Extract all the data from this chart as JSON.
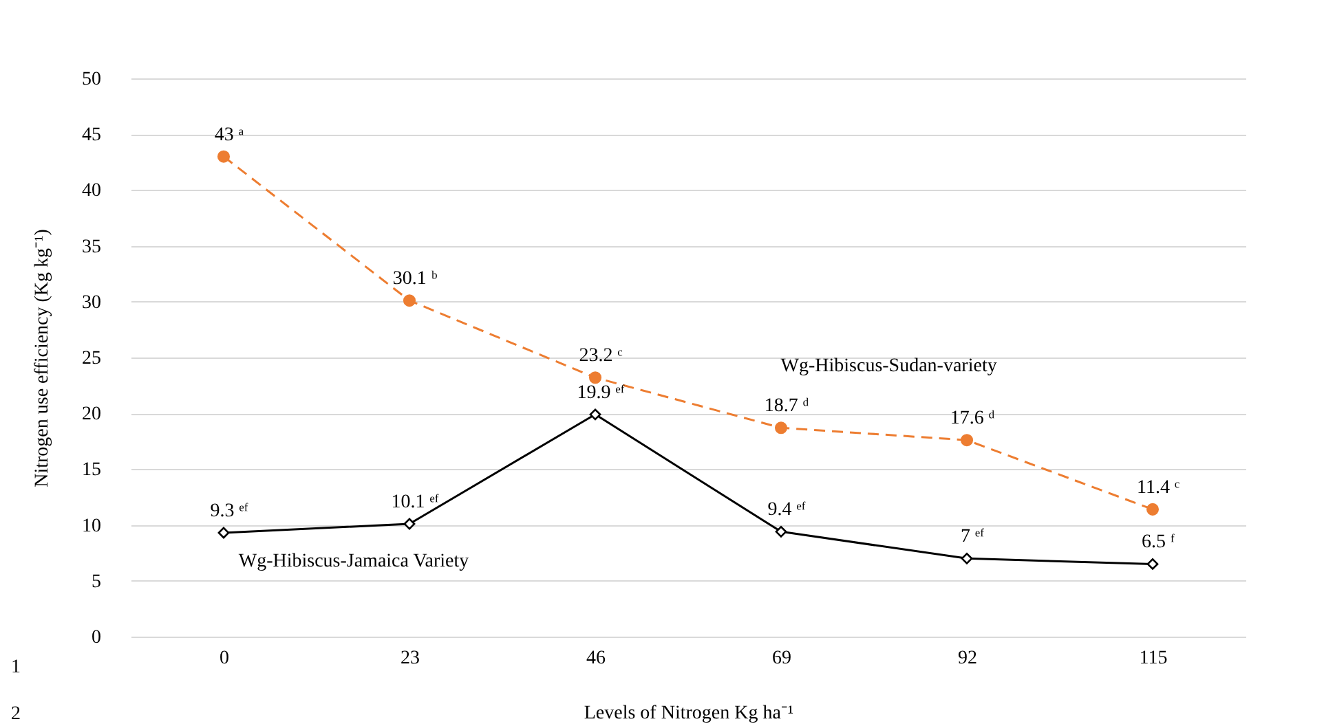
{
  "chart_data": {
    "type": "line",
    "xlabel": "Levels of Nitrogen Kg ha⁻¹",
    "ylabel": "Nitrogen use efficiency (Kg kg⁻¹)",
    "categories": [
      "0",
      "23",
      "46",
      "69",
      "92",
      "115"
    ],
    "series": [
      {
        "name": "Wg-Hibiscus-Sudan-variety",
        "color": "#ed7d31",
        "marker": "circle",
        "line_style": "dashed",
        "values": [
          43,
          30.1,
          23.2,
          18.7,
          17.6,
          11.4
        ],
        "value_labels": [
          "43 ᵃ",
          "30.1 ᵇ",
          "23.2 ᶜ",
          "18.7 ᵈ",
          "17.6 ᵈ",
          "11.4 ᶜ"
        ]
      },
      {
        "name": "Wg-Hibiscus-Jamaica Variety",
        "color": "#000000",
        "marker": "diamond",
        "line_style": "solid",
        "values": [
          9.3,
          10.1,
          19.9,
          9.4,
          7,
          6.5
        ],
        "value_labels": [
          "9.3 ᵉᶠ",
          "10.1 ᵉᶠ",
          "19.9 ᵉᶠ",
          "9.4 ᵉᶠ",
          "7 ᵉᶠ",
          "6.5 ᶠ"
        ]
      }
    ],
    "ylim": [
      0,
      50
    ],
    "yticks": [
      0,
      5,
      10,
      15,
      20,
      25,
      30,
      35,
      40,
      45,
      50
    ],
    "grid": "y",
    "legend": false,
    "annotations": [
      "1",
      "2"
    ]
  }
}
